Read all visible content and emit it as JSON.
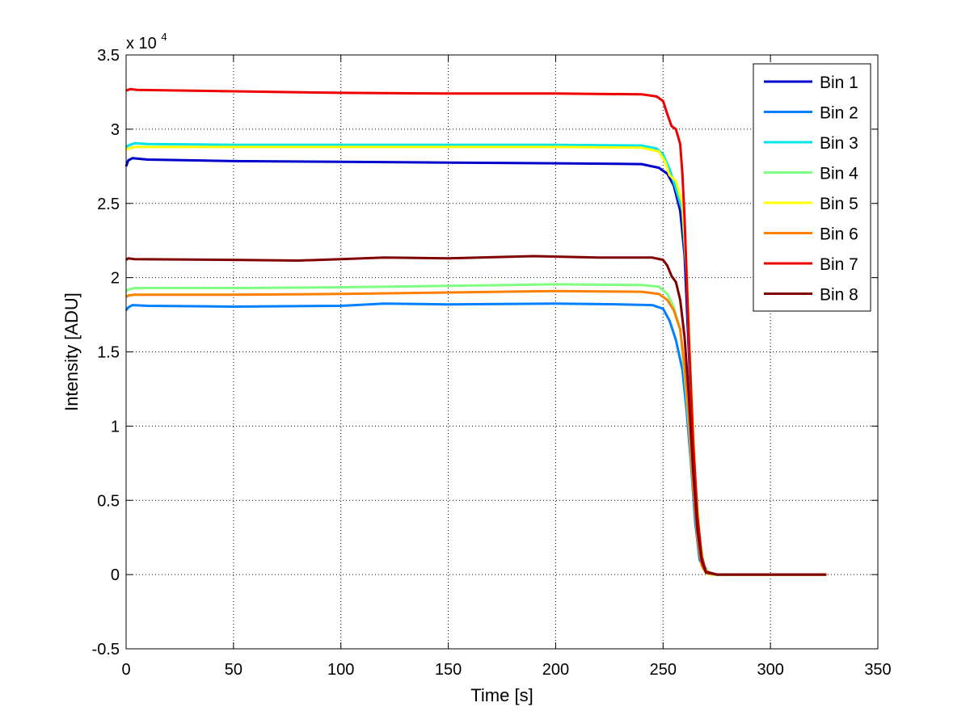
{
  "chart_data": {
    "type": "line",
    "title": "",
    "xlabel": "Time [s]",
    "ylabel": "Intensity [ADU]",
    "xlim": [
      0,
      350
    ],
    "ylim": [
      -5000,
      35000
    ],
    "xticks": [
      0,
      50,
      100,
      150,
      200,
      250,
      300,
      350
    ],
    "xtick_labels": [
      "0",
      "50",
      "100",
      "150",
      "200",
      "250",
      "300",
      "350"
    ],
    "yticks": [
      -5000,
      0,
      5000,
      10000,
      15000,
      20000,
      25000,
      30000,
      35000
    ],
    "ytick_labels": [
      "-0.5",
      "0",
      "0.5",
      "1",
      "1.5",
      "2",
      "2.5",
      "3",
      "3.5"
    ],
    "y_exponent_label": "x 10",
    "y_exponent_power": "4",
    "grid": true,
    "legend_position": "top-right",
    "series": [
      {
        "name": "Bin 1",
        "color": "#0000cc",
        "points": [
          [
            0,
            27500
          ],
          [
            1,
            27900
          ],
          [
            3,
            28050
          ],
          [
            10,
            27950
          ],
          [
            50,
            27850
          ],
          [
            100,
            27800
          ],
          [
            150,
            27750
          ],
          [
            200,
            27700
          ],
          [
            240,
            27650
          ],
          [
            248,
            27400
          ],
          [
            252,
            27000
          ],
          [
            255,
            26200
          ],
          [
            258,
            24500
          ],
          [
            260,
            21500
          ],
          [
            262,
            15000
          ],
          [
            264,
            8000
          ],
          [
            266,
            3000
          ],
          [
            268,
            800
          ],
          [
            270,
            200
          ],
          [
            275,
            0
          ],
          [
            300,
            0
          ],
          [
            326,
            0
          ]
        ]
      },
      {
        "name": "Bin 2",
        "color": "#0080ff",
        "points": [
          [
            0,
            17800
          ],
          [
            1,
            18000
          ],
          [
            3,
            18150
          ],
          [
            10,
            18100
          ],
          [
            50,
            18050
          ],
          [
            100,
            18100
          ],
          [
            120,
            18250
          ],
          [
            150,
            18200
          ],
          [
            200,
            18250
          ],
          [
            230,
            18200
          ],
          [
            245,
            18150
          ],
          [
            250,
            17900
          ],
          [
            253,
            17100
          ],
          [
            256,
            15800
          ],
          [
            259,
            13800
          ],
          [
            261,
            11000
          ],
          [
            263,
            7500
          ],
          [
            265,
            3500
          ],
          [
            267,
            1000
          ],
          [
            270,
            200
          ],
          [
            275,
            0
          ],
          [
            300,
            0
          ],
          [
            326,
            0
          ]
        ]
      },
      {
        "name": "Bin 3",
        "color": "#00e5e5",
        "points": [
          [
            0,
            28800
          ],
          [
            1,
            28900
          ],
          [
            4,
            29050
          ],
          [
            10,
            29000
          ],
          [
            50,
            28950
          ],
          [
            100,
            28950
          ],
          [
            150,
            28950
          ],
          [
            200,
            28950
          ],
          [
            240,
            28900
          ],
          [
            247,
            28700
          ],
          [
            250,
            28300
          ],
          [
            253,
            27300
          ],
          [
            256,
            26000
          ],
          [
            259,
            24500
          ],
          [
            261,
            20000
          ],
          [
            263,
            12000
          ],
          [
            265,
            6000
          ],
          [
            267,
            2500
          ],
          [
            269,
            600
          ],
          [
            272,
            0
          ],
          [
            300,
            0
          ],
          [
            326,
            0
          ]
        ]
      },
      {
        "name": "Bin 4",
        "color": "#80ff80",
        "points": [
          [
            0,
            19100
          ],
          [
            1,
            19200
          ],
          [
            4,
            19300
          ],
          [
            50,
            19300
          ],
          [
            100,
            19350
          ],
          [
            150,
            19450
          ],
          [
            200,
            19550
          ],
          [
            240,
            19500
          ],
          [
            248,
            19400
          ],
          [
            252,
            18900
          ],
          [
            255,
            18000
          ],
          [
            258,
            16500
          ],
          [
            260,
            13500
          ],
          [
            262,
            10000
          ],
          [
            264,
            6000
          ],
          [
            266,
            2500
          ],
          [
            268,
            700
          ],
          [
            270,
            100
          ],
          [
            275,
            0
          ],
          [
            300,
            0
          ],
          [
            326,
            0
          ]
        ]
      },
      {
        "name": "Bin 5",
        "color": "#ffff00",
        "points": [
          [
            0,
            28600
          ],
          [
            1,
            28700
          ],
          [
            4,
            28800
          ],
          [
            50,
            28800
          ],
          [
            100,
            28800
          ],
          [
            150,
            28800
          ],
          [
            200,
            28800
          ],
          [
            240,
            28750
          ],
          [
            248,
            28500
          ],
          [
            251,
            27800
          ],
          [
            253,
            26900
          ],
          [
            256,
            26500
          ],
          [
            259,
            25000
          ],
          [
            261,
            20500
          ],
          [
            263,
            13000
          ],
          [
            265,
            6500
          ],
          [
            267,
            2500
          ],
          [
            269,
            500
          ],
          [
            272,
            0
          ],
          [
            300,
            0
          ],
          [
            326,
            0
          ]
        ]
      },
      {
        "name": "Bin 6",
        "color": "#ff8000",
        "points": [
          [
            0,
            18700
          ],
          [
            1,
            18800
          ],
          [
            4,
            18850
          ],
          [
            50,
            18850
          ],
          [
            100,
            18900
          ],
          [
            150,
            19000
          ],
          [
            200,
            19100
          ],
          [
            240,
            19050
          ],
          [
            248,
            18900
          ],
          [
            252,
            18500
          ],
          [
            255,
            17800
          ],
          [
            258,
            16500
          ],
          [
            260,
            14000
          ],
          [
            262,
            10500
          ],
          [
            264,
            6000
          ],
          [
            266,
            2500
          ],
          [
            268,
            600
          ],
          [
            270,
            100
          ],
          [
            275,
            0
          ],
          [
            300,
            0
          ],
          [
            326,
            0
          ]
        ]
      },
      {
        "name": "Bin 7",
        "color": "#ee0000",
        "points": [
          [
            0,
            32600
          ],
          [
            2,
            32700
          ],
          [
            5,
            32650
          ],
          [
            50,
            32550
          ],
          [
            100,
            32450
          ],
          [
            150,
            32400
          ],
          [
            200,
            32400
          ],
          [
            240,
            32350
          ],
          [
            247,
            32200
          ],
          [
            250,
            31900
          ],
          [
            252,
            31000
          ],
          [
            254,
            30200
          ],
          [
            256,
            30000
          ],
          [
            258,
            29000
          ],
          [
            259,
            27000
          ],
          [
            260,
            24000
          ],
          [
            261,
            20000
          ],
          [
            262,
            16000
          ],
          [
            264,
            9000
          ],
          [
            266,
            4000
          ],
          [
            268,
            1200
          ],
          [
            270,
            200
          ],
          [
            275,
            0
          ],
          [
            300,
            0
          ],
          [
            326,
            0
          ]
        ]
      },
      {
        "name": "Bin 8",
        "color": "#800000",
        "points": [
          [
            0,
            21200
          ],
          [
            1,
            21300
          ],
          [
            4,
            21250
          ],
          [
            50,
            21200
          ],
          [
            80,
            21150
          ],
          [
            100,
            21250
          ],
          [
            120,
            21350
          ],
          [
            150,
            21300
          ],
          [
            190,
            21450
          ],
          [
            220,
            21350
          ],
          [
            245,
            21350
          ],
          [
            250,
            21200
          ],
          [
            252,
            20800
          ],
          [
            254,
            20100
          ],
          [
            256,
            19700
          ],
          [
            258,
            18500
          ],
          [
            260,
            16000
          ],
          [
            262,
            12000
          ],
          [
            264,
            7000
          ],
          [
            266,
            3000
          ],
          [
            268,
            900
          ],
          [
            270,
            150
          ],
          [
            275,
            0
          ],
          [
            300,
            0
          ],
          [
            326,
            0
          ]
        ]
      }
    ]
  }
}
